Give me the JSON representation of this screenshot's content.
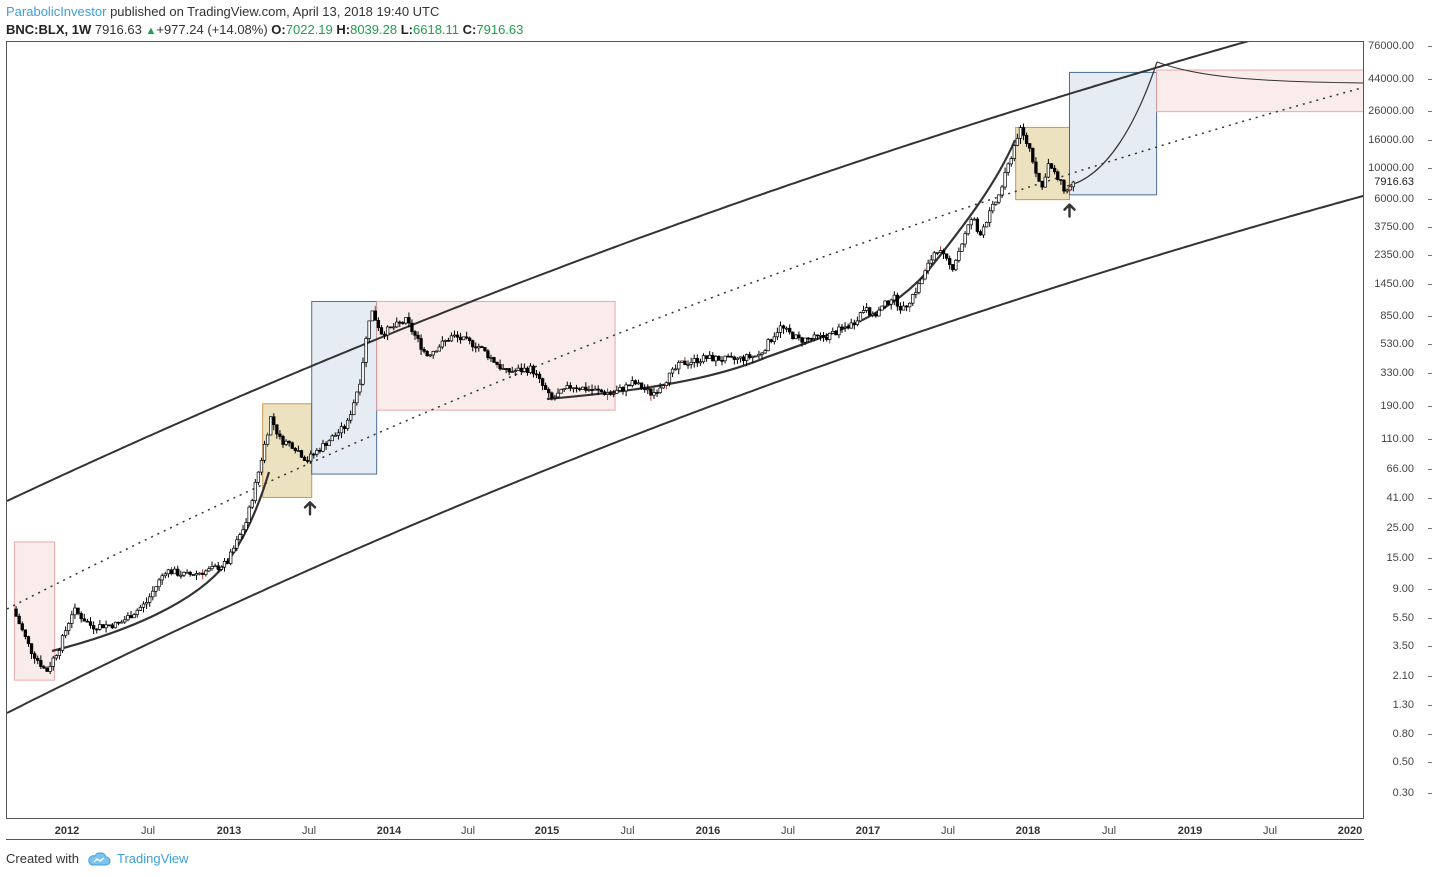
{
  "header": {
    "author": "ParabolicInvestor",
    "published": "published on TradingView.com, April 13, 2018 19:40 UTC",
    "symbol": "BNC:BLX, 1W",
    "price": "7916.63",
    "change": "+977.24 (+14.08%)",
    "open_label": "O:",
    "open": "7022.19",
    "high_label": "H:",
    "high": "8039.28",
    "low_label": "L:",
    "low": "6618.11",
    "close_label": "C:",
    "close": "7916.63"
  },
  "footer": {
    "created_with": "Created with",
    "brand": "TradingView",
    "icon": "tradingview-cloud-icon"
  },
  "colors": {
    "up_candle": "#ffffff",
    "down_candle": "#000000",
    "wick_accent": "#c0392b",
    "pink_box": "#fbeaea",
    "pink_border": "#e8a0a0",
    "blue_box": "#e3eaf3",
    "blue_border": "#3b5f86",
    "tan_box": "#ecdfba",
    "tan_border": "#c88a3a",
    "curve": "#333333",
    "arrow": "#333333"
  },
  "chart_data": {
    "type": "candlestick",
    "scale": "log",
    "yticks": [
      "76000.00",
      "44000.00",
      "26000.00",
      "16000.00",
      "10000.00",
      "6000.00",
      "3750.00",
      "2350.00",
      "1450.00",
      "850.00",
      "530.00",
      "330.00",
      "190.00",
      "110.00",
      "66.00",
      "41.00",
      "25.00",
      "15.00",
      "9.00",
      "5.50",
      "3.50",
      "2.10",
      "1.30",
      "0.80",
      "0.50",
      "0.30"
    ],
    "xticks": [
      {
        "label": "2012",
        "bold": true
      },
      {
        "label": "Jul",
        "bold": false
      },
      {
        "label": "2013",
        "bold": true
      },
      {
        "label": "Jul",
        "bold": false
      },
      {
        "label": "2014",
        "bold": true
      },
      {
        "label": "Jul",
        "bold": false
      },
      {
        "label": "2015",
        "bold": true
      },
      {
        "label": "Jul",
        "bold": false
      },
      {
        "label": "2016",
        "bold": true
      },
      {
        "label": "Jul",
        "bold": false
      },
      {
        "label": "2017",
        "bold": true
      },
      {
        "label": "Jul",
        "bold": false
      },
      {
        "label": "2018",
        "bold": true
      },
      {
        "label": "Jul",
        "bold": false
      },
      {
        "label": "2019",
        "bold": true
      },
      {
        "label": "Jul",
        "bold": false
      },
      {
        "label": "2020",
        "bold": true
      }
    ],
    "last_price": "7916.63",
    "xlim": [
      "2011-09",
      "2020-02"
    ],
    "ylim": [
      0.2,
      90000
    ],
    "price_path": [
      [
        "2011-09-01",
        7.0
      ],
      [
        "2011-10-15",
        3.3
      ],
      [
        "2011-11-20",
        2.3
      ],
      [
        "2011-12-20",
        3.5
      ],
      [
        "2012-01-20",
        6.5
      ],
      [
        "2012-03-01",
        4.9
      ],
      [
        "2012-05-01",
        5.1
      ],
      [
        "2012-07-01",
        7.2
      ],
      [
        "2012-08-15",
        12.5
      ],
      [
        "2012-10-01",
        11.5
      ],
      [
        "2012-11-20",
        12.4
      ],
      [
        "2013-01-01",
        14.0
      ],
      [
        "2013-02-15",
        28.0
      ],
      [
        "2013-03-15",
        70.0
      ],
      [
        "2013-04-10",
        160.0
      ],
      [
        "2013-05-01",
        110.0
      ],
      [
        "2013-06-01",
        100.0
      ],
      [
        "2013-07-01",
        78.0
      ],
      [
        "2013-08-15",
        105.0
      ],
      [
        "2013-10-01",
        140.0
      ],
      [
        "2013-11-01",
        300.0
      ],
      [
        "2013-11-25",
        980.0
      ],
      [
        "2013-12-20",
        650.0
      ],
      [
        "2014-02-15",
        800.0
      ],
      [
        "2014-04-01",
        450.0
      ],
      [
        "2014-06-01",
        620.0
      ],
      [
        "2014-08-01",
        520.0
      ],
      [
        "2014-10-01",
        340.0
      ],
      [
        "2014-12-01",
        360.0
      ],
      [
        "2015-01-15",
        215.0
      ],
      [
        "2015-03-01",
        270.0
      ],
      [
        "2015-06-01",
        235.0
      ],
      [
        "2015-07-20",
        285.0
      ],
      [
        "2015-09-01",
        235.0
      ],
      [
        "2015-11-05",
        390.0
      ],
      [
        "2016-01-01",
        430.0
      ],
      [
        "2016-03-01",
        415.0
      ],
      [
        "2016-05-01",
        450.0
      ],
      [
        "2016-06-18",
        720.0
      ],
      [
        "2016-08-01",
        580.0
      ],
      [
        "2016-10-01",
        610.0
      ],
      [
        "2016-12-01",
        760.0
      ],
      [
        "2017-01-04",
        1050.0
      ],
      [
        "2017-01-15",
        830.0
      ],
      [
        "2017-03-01",
        1200.0
      ],
      [
        "2017-03-25",
        950.0
      ],
      [
        "2017-05-01",
        1450.0
      ],
      [
        "2017-06-10",
        2700.0
      ],
      [
        "2017-07-15",
        1900.0
      ],
      [
        "2017-09-01",
        4600.0
      ],
      [
        "2017-09-15",
        3300.0
      ],
      [
        "2017-11-01",
        6500.0
      ],
      [
        "2017-12-17",
        19500.0
      ],
      [
        "2018-01-10",
        14000.0
      ],
      [
        "2018-02-06",
        7000.0
      ],
      [
        "2018-02-20",
        11000.0
      ],
      [
        "2018-03-15",
        8200.0
      ],
      [
        "2018-04-01",
        6800.0
      ],
      [
        "2018-04-13",
        7916.63
      ]
    ],
    "trend_curves": [
      {
        "name": "upper-channel",
        "style": "solid"
      },
      {
        "name": "lower-channel",
        "style": "solid"
      },
      {
        "name": "midline",
        "style": "dotted"
      }
    ],
    "zones": [
      {
        "type": "pink",
        "x": [
          "2011-09-01",
          "2011-12-01"
        ],
        "y": [
          2.0,
          20.0
        ]
      },
      {
        "type": "tan",
        "x": [
          "2013-03-15",
          "2013-07-05"
        ],
        "y": [
          42.0,
          200.0
        ]
      },
      {
        "type": "blue",
        "x": [
          "2013-07-05",
          "2013-12-01"
        ],
        "y": [
          62.0,
          1100.0
        ]
      },
      {
        "type": "pink",
        "x": [
          "2013-12-01",
          "2015-06-01"
        ],
        "y": [
          180.0,
          1100.0
        ]
      },
      {
        "type": "tan",
        "x": [
          "2017-12-01",
          "2018-04-01"
        ],
        "y": [
          6000.0,
          20000.0
        ]
      },
      {
        "type": "blue",
        "x": [
          "2018-04-01",
          "2018-10-15"
        ],
        "y": [
          6500.0,
          50000.0
        ]
      },
      {
        "type": "pink",
        "x": [
          "2018-10-15",
          "2020-02-01"
        ],
        "y": [
          26000.0,
          52000.0
        ]
      }
    ],
    "arrows": [
      {
        "name": "up-arrow-2013",
        "x": "2013-07-01",
        "y": 35.0
      },
      {
        "name": "up-arrow-2018",
        "x": "2018-04-01",
        "y": 5000.0
      }
    ]
  }
}
